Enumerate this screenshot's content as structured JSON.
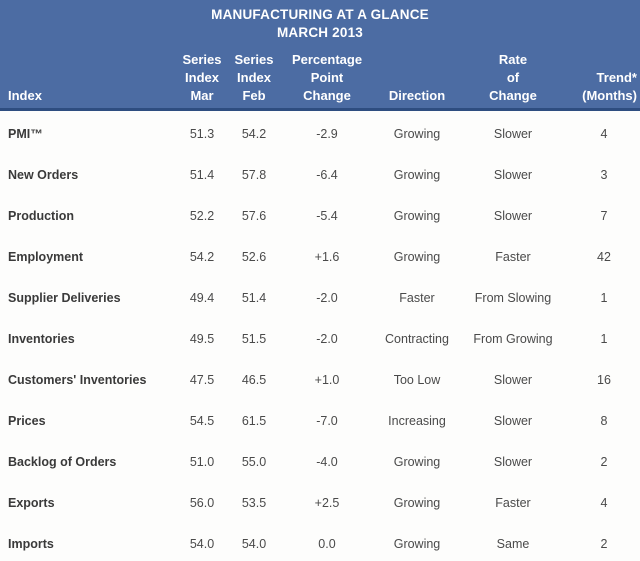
{
  "title": {
    "line1": "MANUFACTURING AT A GLANCE",
    "line2": "MARCH 2013"
  },
  "columns": {
    "index": "Index",
    "mar": "Series\nIndex\nMar",
    "feb": "Series\nIndex\nFeb",
    "change": "Percentage\nPoint\nChange",
    "direction": "Direction",
    "rate": "Rate\nof\nChange",
    "trend": "Trend*\n(Months)"
  },
  "rows": [
    {
      "index": "PMI™",
      "mar": "51.3",
      "feb": "54.2",
      "change": "-2.9",
      "direction": "Growing",
      "rate": "Slower",
      "trend": "4"
    },
    {
      "index": "New Orders",
      "mar": "51.4",
      "feb": "57.8",
      "change": "-6.4",
      "direction": "Growing",
      "rate": "Slower",
      "trend": "3"
    },
    {
      "index": "Production",
      "mar": "52.2",
      "feb": "57.6",
      "change": "-5.4",
      "direction": "Growing",
      "rate": "Slower",
      "trend": "7"
    },
    {
      "index": "Employment",
      "mar": "54.2",
      "feb": "52.6",
      "change": "+1.6",
      "direction": "Growing",
      "rate": "Faster",
      "trend": "42"
    },
    {
      "index": "Supplier Deliveries",
      "mar": "49.4",
      "feb": "51.4",
      "change": "-2.0",
      "direction": "Faster",
      "rate": "From Slowing",
      "trend": "1"
    },
    {
      "index": "Inventories",
      "mar": "49.5",
      "feb": "51.5",
      "change": "-2.0",
      "direction": "Contracting",
      "rate": "From Growing",
      "trend": "1"
    },
    {
      "index": "Customers' Inventories",
      "mar": "47.5",
      "feb": "46.5",
      "change": "+1.0",
      "direction": "Too Low",
      "rate": "Slower",
      "trend": "16"
    },
    {
      "index": "Prices",
      "mar": "54.5",
      "feb": "61.5",
      "change": "-7.0",
      "direction": "Increasing",
      "rate": "Slower",
      "trend": "8"
    },
    {
      "index": "Backlog of Orders",
      "mar": "51.0",
      "feb": "55.0",
      "change": "-4.0",
      "direction": "Growing",
      "rate": "Slower",
      "trend": "2"
    },
    {
      "index": "Exports",
      "mar": "56.0",
      "feb": "53.5",
      "change": "+2.5",
      "direction": "Growing",
      "rate": "Faster",
      "trend": "4"
    },
    {
      "index": "Imports",
      "mar": "54.0",
      "feb": "54.0",
      "change": "0.0",
      "direction": "Growing",
      "rate": "Same",
      "trend": "2"
    }
  ],
  "colors": {
    "header_bg": "#4c6ca3",
    "header_divider": "#2e4d80",
    "header_text": "#ffffff",
    "body_bg": "#fdfdfc",
    "body_text": "#4a4a4a"
  }
}
